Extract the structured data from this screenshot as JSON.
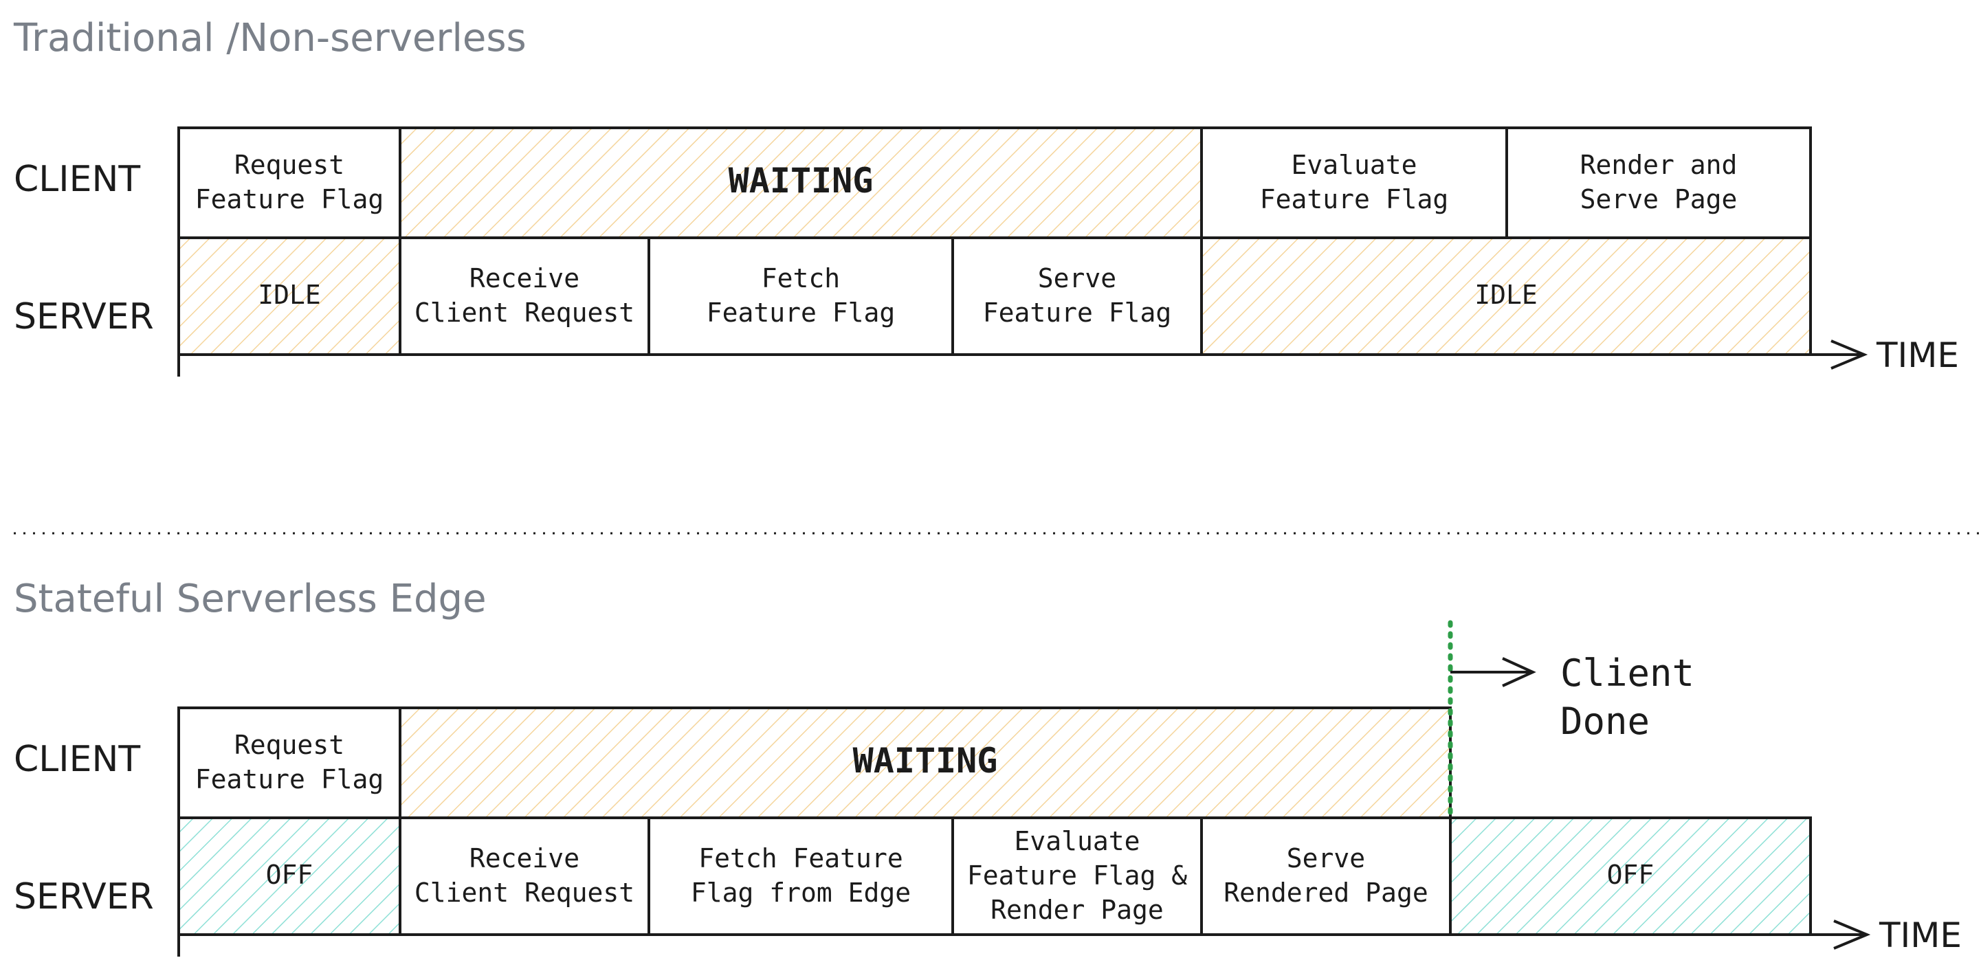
{
  "diagrams": [
    {
      "title": "Traditional /Non-serverless",
      "client_label": "CLIENT",
      "server_label": "SERVER",
      "time_label": "TIME",
      "client_cells": [
        {
          "lines": [
            "Request",
            "Feature Flag"
          ],
          "fill": "plain"
        },
        {
          "lines": [
            "WAITING"
          ],
          "fill": "wait"
        },
        {
          "lines": [
            "Evaluate",
            "Feature Flag"
          ],
          "fill": "plain"
        },
        {
          "lines": [
            "Render and",
            "Serve Page"
          ],
          "fill": "plain"
        }
      ],
      "server_cells": [
        {
          "lines": [
            "IDLE"
          ],
          "fill": "wait"
        },
        {
          "lines": [
            "Receive",
            "Client Request"
          ],
          "fill": "plain"
        },
        {
          "lines": [
            "Fetch",
            "Feature Flag"
          ],
          "fill": "plain"
        },
        {
          "lines": [
            "Serve",
            "Feature Flag"
          ],
          "fill": "plain"
        },
        {
          "lines": [
            "IDLE"
          ],
          "fill": "wait"
        }
      ]
    },
    {
      "title": "Stateful Serverless Edge",
      "client_label": "CLIENT",
      "server_label": "SERVER",
      "time_label": "TIME",
      "client_cells": [
        {
          "lines": [
            "Request",
            "Feature Flag"
          ],
          "fill": "plain"
        },
        {
          "lines": [
            "WAITING"
          ],
          "fill": "wait"
        }
      ],
      "server_cells": [
        {
          "lines": [
            "OFF"
          ],
          "fill": "off"
        },
        {
          "lines": [
            "Receive",
            "Client Request"
          ],
          "fill": "plain"
        },
        {
          "lines": [
            "Fetch Feature",
            "Flag from Edge"
          ],
          "fill": "plain"
        },
        {
          "lines": [
            "Evaluate",
            "Feature Flag &",
            "Render Page"
          ],
          "fill": "plain"
        },
        {
          "lines": [
            "Serve",
            "Rendered Page"
          ],
          "fill": "plain"
        },
        {
          "lines": [
            "OFF"
          ],
          "fill": "off"
        }
      ],
      "annotation": {
        "lines": [
          "Client",
          "Done"
        ]
      }
    }
  ],
  "colors": {
    "wait_hatch": "#f5d59c",
    "off_hatch": "#8ee0d6",
    "marker": "#2e9e48",
    "stroke": "#1b1b1b",
    "title": "#7a8089"
  }
}
